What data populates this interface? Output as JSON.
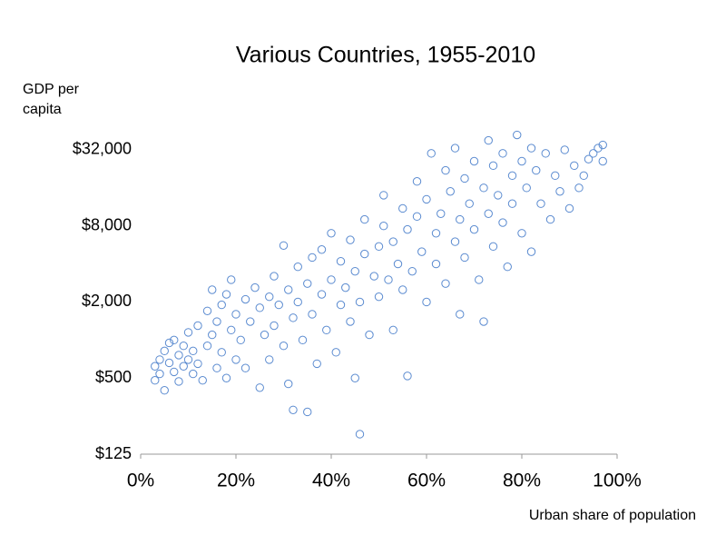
{
  "chart_data": {
    "type": "scatter",
    "title": "Various Countries, 1955-2010",
    "y_label": "GDP per capita",
    "x_label": "Urban share of population",
    "color": "#5b8bd0",
    "ylog": true,
    "xlim": [
      0,
      100
    ],
    "xticks": [
      {
        "value": 0,
        "label": "0%"
      },
      {
        "value": 20,
        "label": "20%"
      },
      {
        "value": 40,
        "label": "40%"
      },
      {
        "value": 60,
        "label": "60%"
      },
      {
        "value": 80,
        "label": "80%"
      },
      {
        "value": 100,
        "label": "100%"
      }
    ],
    "ylim": [
      125,
      50000
    ],
    "yticks": [
      {
        "value": 125,
        "label": "$125"
      },
      {
        "value": 500,
        "label": "$500"
      },
      {
        "value": 2000,
        "label": "$2,000"
      },
      {
        "value": 8000,
        "label": "$8,000"
      },
      {
        "value": 32000,
        "label": "$32,000"
      }
    ],
    "x": [
      3,
      3,
      4,
      4,
      5,
      5,
      6,
      6,
      7,
      7,
      8,
      8,
      9,
      9,
      10,
      10,
      11,
      11,
      12,
      12,
      13,
      14,
      14,
      15,
      15,
      16,
      16,
      17,
      17,
      18,
      18,
      19,
      19,
      20,
      20,
      21,
      22,
      22,
      23,
      24,
      25,
      25,
      26,
      27,
      27,
      28,
      28,
      29,
      30,
      30,
      31,
      31,
      32,
      32,
      33,
      33,
      34,
      35,
      35,
      36,
      36,
      37,
      38,
      38,
      39,
      40,
      40,
      41,
      42,
      42,
      43,
      44,
      44,
      45,
      45,
      46,
      46,
      47,
      47,
      48,
      49,
      50,
      50,
      51,
      51,
      52,
      53,
      53,
      54,
      55,
      55,
      56,
      56,
      57,
      58,
      58,
      59,
      60,
      60,
      61,
      62,
      62,
      63,
      64,
      64,
      65,
      66,
      66,
      67,
      67,
      68,
      68,
      69,
      70,
      70,
      71,
      72,
      72,
      73,
      73,
      74,
      74,
      75,
      76,
      76,
      77,
      78,
      78,
      79,
      80,
      80,
      81,
      82,
      82,
      83,
      84,
      85,
      86,
      87,
      88,
      89,
      90,
      91,
      92,
      93,
      94,
      95,
      96,
      97,
      97
    ],
    "values": [
      620,
      480,
      700,
      540,
      820,
      400,
      950,
      660,
      1000,
      560,
      760,
      470,
      900,
      620,
      1150,
      700,
      540,
      820,
      1300,
      650,
      480,
      900,
      1700,
      2500,
      1100,
      600,
      1400,
      1900,
      800,
      2300,
      500,
      3000,
      1200,
      1600,
      700,
      1000,
      2100,
      600,
      1400,
      2600,
      1800,
      420,
      1100,
      2200,
      700,
      3200,
      1300,
      1900,
      5600,
      900,
      2500,
      450,
      1500,
      280,
      3800,
      2000,
      1000,
      2800,
      270,
      4500,
      1600,
      650,
      5200,
      2300,
      1200,
      3000,
      7000,
      800,
      1900,
      4200,
      2600,
      6200,
      1400,
      3500,
      500,
      180,
      2000,
      9000,
      4800,
      1100,
      3200,
      5500,
      2200,
      14000,
      8000,
      3000,
      1200,
      6000,
      4000,
      11000,
      2500,
      520,
      7500,
      3500,
      18000,
      9500,
      5000,
      2000,
      13000,
      30000,
      7000,
      4000,
      10000,
      22000,
      2800,
      15000,
      6000,
      33000,
      9000,
      1600,
      19000,
      4500,
      12000,
      26000,
      7500,
      3000,
      16000,
      1400,
      38000,
      10000,
      24000,
      5500,
      14000,
      30000,
      8500,
      3800,
      20000,
      12000,
      42000,
      26000,
      7000,
      16000,
      33000,
      5000,
      22000,
      12000,
      30000,
      9000,
      20000,
      15000,
      32000,
      11000,
      24000,
      16000,
      20000,
      27000,
      30000,
      33000,
      35000,
      26000
    ]
  }
}
